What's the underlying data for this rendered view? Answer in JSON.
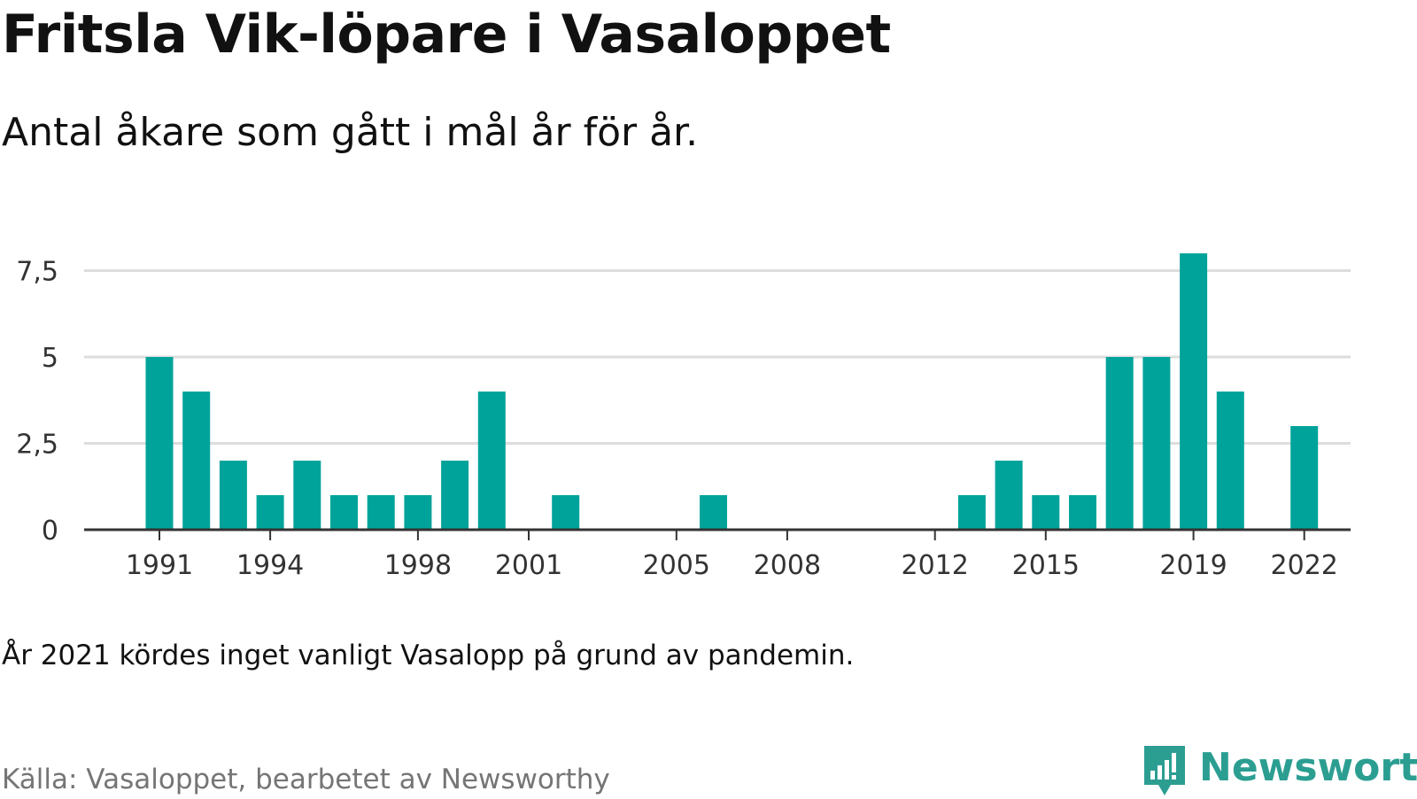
{
  "header": {
    "title": "Fritsla Vik-löpare i Vasaloppet",
    "subtitle": "Antal åkare som gått i mål år för år."
  },
  "footer": {
    "note": "År 2021 kördes inget vanligt Vasalopp på grund av pandemin.",
    "source": "Källa: Vasaloppet, bearbetet av Newsworthy",
    "logo_text": "Newsworthy"
  },
  "colors": {
    "bar": "#00a39a",
    "grid": "#dddddd",
    "axis": "#333333",
    "brand": "#2b9e91"
  },
  "chart_data": {
    "type": "bar",
    "title": "Fritsla Vik-löpare i Vasaloppet",
    "subtitle": "Antal åkare som gått i mål år för år.",
    "xlabel": "",
    "ylabel": "",
    "ylim": [
      0,
      8
    ],
    "grid": true,
    "categories": [
      1991,
      1992,
      1993,
      1994,
      1995,
      1996,
      1997,
      1998,
      1999,
      2000,
      2001,
      2002,
      2003,
      2004,
      2005,
      2006,
      2007,
      2008,
      2009,
      2010,
      2011,
      2012,
      2013,
      2014,
      2015,
      2016,
      2017,
      2018,
      2019,
      2020,
      2021,
      2022
    ],
    "values": [
      5,
      4,
      2,
      1,
      2,
      1,
      1,
      1,
      2,
      4,
      0,
      1,
      0,
      0,
      0,
      1,
      0,
      0,
      0,
      0,
      0,
      0,
      1,
      2,
      1,
      1,
      5,
      5,
      8,
      4,
      0,
      3
    ],
    "x_tick_labels": [
      "1991",
      "1994",
      "1998",
      "2001",
      "2005",
      "2008",
      "2012",
      "2015",
      "2019",
      "2022"
    ],
    "y_ticks": [
      {
        "value": 0,
        "label": "0"
      },
      {
        "value": 2.5,
        "label": "2,5"
      },
      {
        "value": 5,
        "label": "5"
      },
      {
        "value": 7.5,
        "label": "7,5"
      }
    ]
  }
}
